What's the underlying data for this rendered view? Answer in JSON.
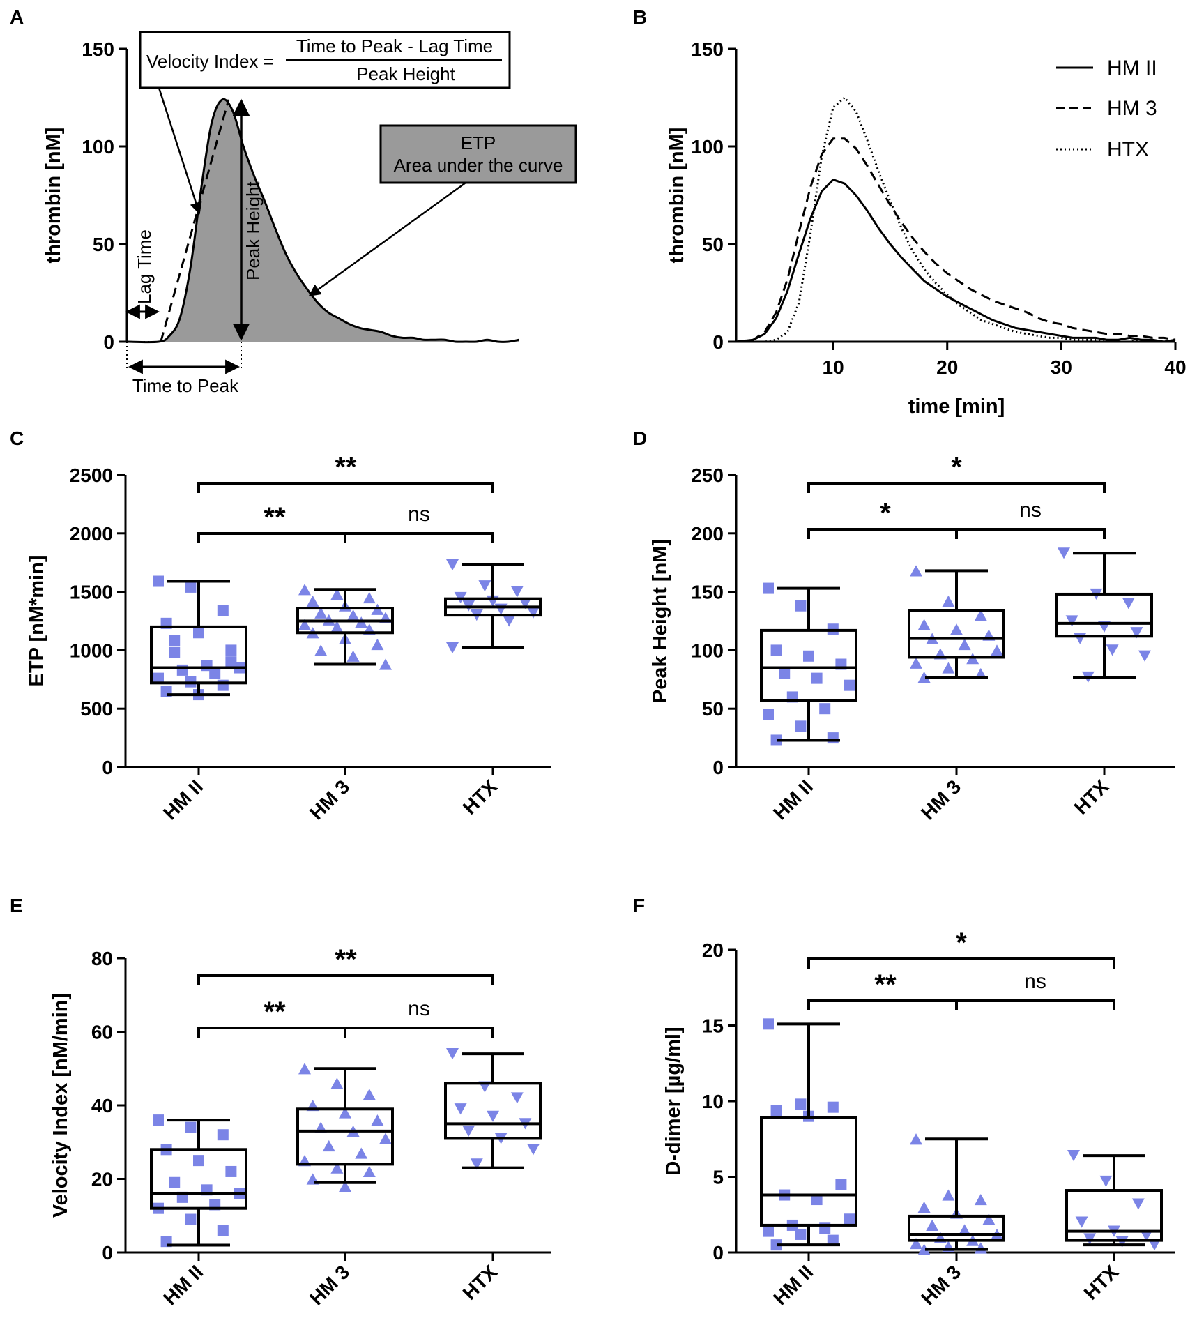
{
  "panels": {
    "A": "A",
    "B": "B",
    "C": "C",
    "D": "D",
    "E": "E",
    "F": "F"
  },
  "colors": {
    "marker": "#7b84e6",
    "area": "#9a9a9a",
    "box_stroke": "#000000"
  },
  "chart_data": [
    {
      "id": "A",
      "type": "line",
      "title": "",
      "xlabel": "",
      "ylabel": "thrombin [nM]",
      "yticks": [
        "0",
        "50",
        "100",
        "150"
      ],
      "ylim": [
        0,
        150
      ],
      "xlim": [
        0,
        40
      ],
      "curve": {
        "x": [
          0,
          3,
          4,
          5,
          6,
          7,
          8,
          9,
          10,
          11,
          12,
          13,
          14,
          15,
          16,
          17,
          18,
          19,
          20,
          21,
          22,
          23,
          24,
          25,
          26,
          27,
          28,
          29,
          30,
          31,
          32,
          33,
          34,
          35,
          36,
          37
        ],
        "y": [
          0,
          0,
          3,
          12,
          38,
          78,
          112,
          124,
          118,
          100,
          85,
          72,
          58,
          45,
          35,
          27,
          20,
          15,
          12,
          9,
          7,
          6,
          5,
          3,
          2,
          2,
          1,
          1,
          1,
          0,
          0,
          0,
          1,
          0,
          0,
          1
        ]
      },
      "tangent": {
        "x": [
          3.2,
          9.6
        ],
        "y": [
          0,
          124
        ]
      },
      "lag_time_min": 3.2,
      "time_to_peak_min": 9.6,
      "peak_height": 124,
      "formula": {
        "lhs": "Velocity Index =",
        "numerator": "Time to Peak - Lag Time",
        "denominator": "Peak Height"
      },
      "etp_box": {
        "line1": "ETP",
        "line2": "Area under the curve"
      },
      "labels": {
        "lag_time": "Lag Time",
        "peak_height": "Peak  Height",
        "time_to_peak": "Time to Peak"
      }
    },
    {
      "id": "B",
      "type": "line",
      "xlabel": "time [min]",
      "ylabel": "thrombin [nM]",
      "xticks": [
        "10",
        "20",
        "30",
        "40"
      ],
      "yticks": [
        "0",
        "50",
        "100",
        "150"
      ],
      "xlim": [
        1.5,
        40
      ],
      "ylim": [
        0,
        150
      ],
      "legend_position": "top-right",
      "series": [
        {
          "name": "HM II",
          "style": "solid",
          "x": [
            1.5,
            3,
            4,
            5,
            6,
            7,
            8,
            9,
            10,
            11,
            12,
            13,
            14,
            15,
            16,
            17,
            18,
            19,
            20,
            21,
            22,
            23,
            24,
            25,
            26,
            27,
            28,
            29,
            30,
            31,
            32,
            33,
            34,
            35,
            36,
            37,
            38,
            39,
            40
          ],
          "y": [
            0,
            1,
            4,
            12,
            26,
            45,
            63,
            77,
            83,
            81,
            75,
            67,
            58,
            50,
            43,
            37,
            31,
            27,
            23,
            20,
            17,
            14,
            11,
            9,
            7,
            6,
            5,
            4,
            3,
            2,
            2,
            2,
            1,
            1,
            2,
            1,
            1,
            0,
            1
          ]
        },
        {
          "name": "HM 3",
          "style": "dashed",
          "x": [
            1.5,
            3,
            4,
            5,
            6,
            7,
            8,
            9,
            10,
            11,
            12,
            13,
            14,
            15,
            16,
            17,
            18,
            19,
            20,
            21,
            22,
            23,
            24,
            25,
            26,
            27,
            28,
            29,
            30,
            31,
            32,
            33,
            34,
            35,
            36,
            37,
            38,
            39,
            40
          ],
          "y": [
            0,
            1,
            5,
            15,
            32,
            56,
            79,
            96,
            104,
            104,
            99,
            90,
            80,
            70,
            61,
            53,
            46,
            40,
            35,
            31,
            27,
            24,
            21,
            19,
            17,
            15,
            12,
            10,
            9,
            7,
            6,
            5,
            4,
            4,
            3,
            3,
            2,
            2,
            1
          ]
        },
        {
          "name": "HTX",
          "style": "dotted",
          "x": [
            1.5,
            3,
            4,
            5,
            6,
            7,
            8,
            9,
            10,
            11,
            12,
            13,
            14,
            15,
            16,
            17,
            18,
            19,
            20,
            21,
            22,
            23,
            24,
            25,
            26,
            27,
            28,
            29,
            30,
            31,
            32,
            33,
            34,
            35,
            36,
            37,
            38,
            39,
            40
          ],
          "y": [
            0,
            0,
            0,
            1,
            5,
            20,
            55,
            95,
            120,
            125,
            118,
            103,
            87,
            72,
            58,
            46,
            37,
            30,
            24,
            19,
            15,
            11,
            9,
            7,
            5,
            4,
            3,
            2,
            2,
            1,
            1,
            1,
            1,
            0,
            0,
            1,
            0,
            0,
            1
          ]
        }
      ]
    },
    {
      "id": "C",
      "type": "box",
      "ylabel": "ETP [nM*min]",
      "yticks": [
        "0",
        "500",
        "1000",
        "1500",
        "2000",
        "2500"
      ],
      "ylim": [
        0,
        2500
      ],
      "categories": [
        "HM II",
        "HM 3",
        "HTX"
      ],
      "boxes": [
        {
          "min": 620,
          "q1": 720,
          "median": 850,
          "q3": 1200,
          "max": 1590
        },
        {
          "min": 880,
          "q1": 1150,
          "median": 1250,
          "q3": 1360,
          "max": 1520
        },
        {
          "min": 1020,
          "q1": 1300,
          "median": 1370,
          "q3": 1440,
          "max": 1730
        }
      ],
      "points": [
        {
          "marker": "square",
          "values": [
            1590,
            1540,
            1340,
            1230,
            1150,
            1000,
            980,
            870,
            850,
            830,
            800,
            760,
            730,
            700,
            650,
            620,
            900,
            1080
          ]
        },
        {
          "marker": "triangle-up",
          "values": [
            1520,
            1480,
            1450,
            1420,
            1380,
            1350,
            1320,
            1300,
            1280,
            1260,
            1240,
            1220,
            1200,
            1180,
            1150,
            1100,
            1050,
            1000,
            950,
            880
          ]
        },
        {
          "marker": "triangle-down",
          "values": [
            1730,
            1550,
            1500,
            1450,
            1420,
            1400,
            1380,
            1350,
            1320,
            1300,
            1250,
            1020
          ]
        }
      ],
      "brackets": [
        {
          "from": 0,
          "to": 2,
          "label": "**",
          "level": "top"
        },
        {
          "from": 0,
          "to": 1,
          "label": "**",
          "level": "lower"
        },
        {
          "from": 1,
          "to": 2,
          "label": "ns",
          "level": "lower"
        }
      ]
    },
    {
      "id": "D",
      "type": "box",
      "ylabel": "Peak Height [nM]",
      "yticks": [
        "0",
        "50",
        "100",
        "150",
        "200",
        "250"
      ],
      "ylim": [
        0,
        250
      ],
      "categories": [
        "HM II",
        "HM 3",
        "HTX"
      ],
      "boxes": [
        {
          "min": 23,
          "q1": 57,
          "median": 85,
          "q3": 117,
          "max": 153
        },
        {
          "min": 77,
          "q1": 94,
          "median": 110,
          "q3": 134,
          "max": 168
        },
        {
          "min": 77,
          "q1": 112,
          "median": 123,
          "q3": 148,
          "max": 183
        }
      ],
      "points": [
        {
          "marker": "square",
          "values": [
            153,
            138,
            118,
            100,
            95,
            88,
            80,
            76,
            70,
            60,
            50,
            45,
            35,
            25,
            23
          ]
        },
        {
          "marker": "triangle-up",
          "values": [
            168,
            142,
            130,
            122,
            118,
            113,
            110,
            105,
            100,
            97,
            93,
            89,
            85,
            80,
            77
          ]
        },
        {
          "marker": "triangle-down",
          "values": [
            183,
            148,
            140,
            125,
            120,
            115,
            110,
            100,
            95,
            77
          ]
        }
      ],
      "brackets": [
        {
          "from": 0,
          "to": 2,
          "label": "*",
          "level": "top"
        },
        {
          "from": 0,
          "to": 1,
          "label": "*",
          "level": "lower"
        },
        {
          "from": 1,
          "to": 2,
          "label": "ns",
          "level": "lower"
        }
      ]
    },
    {
      "id": "E",
      "type": "box",
      "ylabel": "Velocity Index [nM/min]",
      "yticks": [
        "0",
        "20",
        "40",
        "60",
        "80"
      ],
      "ylim": [
        0,
        80
      ],
      "categories": [
        "HM II",
        "HM 3",
        "HTX"
      ],
      "boxes": [
        {
          "min": 2,
          "q1": 12,
          "median": 16,
          "q3": 28,
          "max": 36
        },
        {
          "min": 19,
          "q1": 24,
          "median": 33,
          "q3": 39,
          "max": 50
        },
        {
          "min": 23,
          "q1": 31,
          "median": 35,
          "q3": 46,
          "max": 54
        }
      ],
      "points": [
        {
          "marker": "square",
          "values": [
            36,
            34,
            32,
            28,
            25,
            22,
            19,
            17,
            16,
            15,
            13,
            12,
            9,
            6,
            3
          ]
        },
        {
          "marker": "triangle-up",
          "values": [
            50,
            46,
            43,
            40,
            38,
            36,
            34,
            33,
            31,
            29,
            27,
            25,
            23,
            22,
            20,
            18
          ]
        },
        {
          "marker": "triangle-down",
          "values": [
            54,
            45,
            42,
            39,
            37,
            35,
            33,
            31,
            28,
            24
          ]
        }
      ],
      "brackets": [
        {
          "from": 0,
          "to": 2,
          "label": "**",
          "level": "top"
        },
        {
          "from": 0,
          "to": 1,
          "label": "**",
          "level": "lower"
        },
        {
          "from": 1,
          "to": 2,
          "label": "ns",
          "level": "lower"
        }
      ]
    },
    {
      "id": "F",
      "type": "box",
      "ylabel": "D-dimer [µg/ml]",
      "yticks": [
        "0",
        "5",
        "10",
        "15",
        "20"
      ],
      "ylim": [
        0,
        20
      ],
      "categories": [
        "HM II",
        "HM 3",
        "HTX"
      ],
      "boxes": [
        {
          "min": 0.5,
          "q1": 1.8,
          "median": 3.8,
          "q3": 8.9,
          "max": 15.1
        },
        {
          "min": 0.2,
          "q1": 0.8,
          "median": 1.2,
          "q3": 2.4,
          "max": 7.5
        },
        {
          "min": 0.5,
          "q1": 0.8,
          "median": 1.4,
          "q3": 4.1,
          "max": 6.4
        }
      ],
      "points": [
        {
          "marker": "square",
          "values": [
            15.1,
            9.8,
            9.6,
            9.4,
            9.0,
            4.5,
            3.8,
            3.5,
            2.2,
            1.8,
            1.6,
            1.4,
            1.2,
            0.8,
            0.5
          ]
        },
        {
          "marker": "triangle-up",
          "values": [
            7.5,
            3.8,
            3.5,
            3.0,
            2.6,
            2.2,
            1.8,
            1.5,
            1.2,
            1.0,
            0.8,
            0.6,
            0.4,
            0.3,
            0.2
          ]
        },
        {
          "marker": "triangle-down",
          "values": [
            6.4,
            4.7,
            3.2,
            2.0,
            1.4,
            1.1,
            0.9,
            0.7,
            0.5
          ]
        }
      ],
      "brackets": [
        {
          "from": 0,
          "to": 2,
          "label": "*",
          "level": "top"
        },
        {
          "from": 0,
          "to": 1,
          "label": "**",
          "level": "lower"
        },
        {
          "from": 1,
          "to": 2,
          "label": "ns",
          "level": "lower"
        }
      ]
    }
  ]
}
